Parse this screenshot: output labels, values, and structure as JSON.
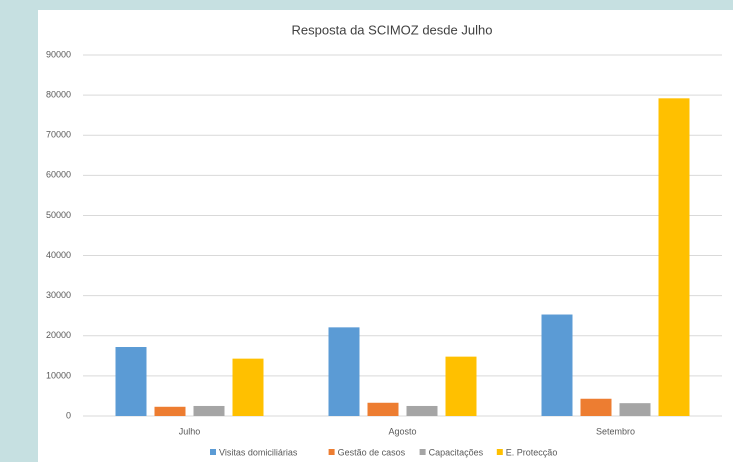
{
  "chart_data": {
    "type": "bar",
    "title": "Resposta da SCIMOZ desde Julho",
    "categories": [
      "Julho",
      "Agosto",
      "Setembro"
    ],
    "series": [
      {
        "name": "Visitas domiciliárias",
        "color": "#5b9bd5",
        "values": [
          17200,
          22100,
          25300
        ]
      },
      {
        "name": "Gestão de casos",
        "color": "#ed7d31",
        "values": [
          2300,
          3300,
          4300
        ]
      },
      {
        "name": "Capacitações",
        "color": "#a5a5a5",
        "values": [
          2500,
          2500,
          3200
        ]
      },
      {
        "name": "E. Protecção",
        "color": "#ffc000",
        "values": [
          14300,
          14800,
          79200
        ]
      }
    ],
    "ylim": [
      0,
      90000
    ],
    "yticks": [
      0,
      10000,
      20000,
      30000,
      40000,
      50000,
      60000,
      70000,
      80000,
      90000
    ],
    "grid": true,
    "legend": "bottom"
  }
}
